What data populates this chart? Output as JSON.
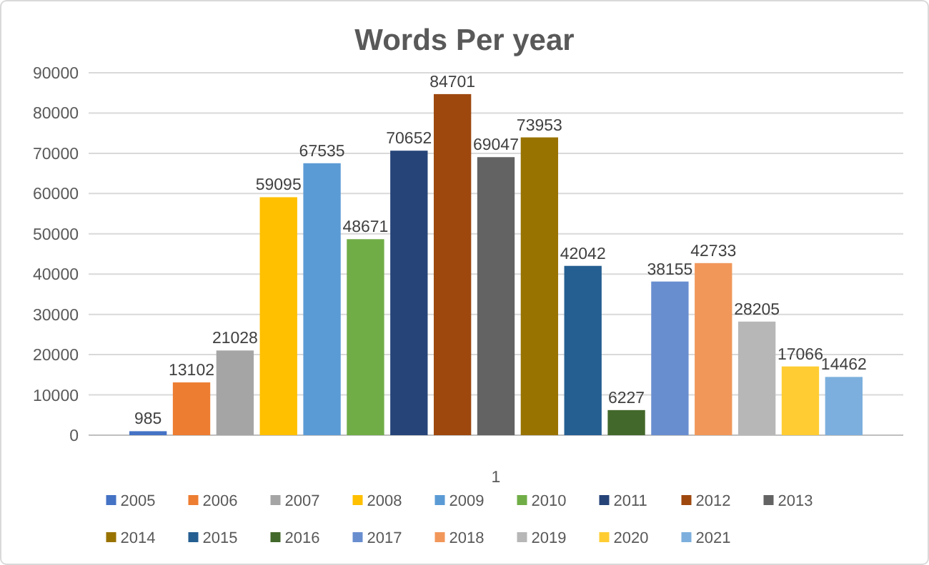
{
  "chart_data": {
    "type": "bar",
    "title": "Words Per year",
    "categories": [
      "1"
    ],
    "series": [
      {
        "name": "2005",
        "color": "#4472c4",
        "values": [
          985
        ]
      },
      {
        "name": "2006",
        "color": "#ed7d31",
        "values": [
          13102
        ]
      },
      {
        "name": "2007",
        "color": "#a5a5a5",
        "values": [
          21028
        ]
      },
      {
        "name": "2008",
        "color": "#ffc000",
        "values": [
          59095
        ]
      },
      {
        "name": "2009",
        "color": "#5b9bd5",
        "values": [
          67535
        ]
      },
      {
        "name": "2010",
        "color": "#70ad47",
        "values": [
          48671
        ]
      },
      {
        "name": "2011",
        "color": "#264478",
        "values": [
          70652
        ]
      },
      {
        "name": "2012",
        "color": "#9e480e",
        "values": [
          84701
        ]
      },
      {
        "name": "2013",
        "color": "#636363",
        "values": [
          69047
        ]
      },
      {
        "name": "2014",
        "color": "#997300",
        "values": [
          73953
        ]
      },
      {
        "name": "2015",
        "color": "#255e91",
        "values": [
          42042
        ]
      },
      {
        "name": "2016",
        "color": "#43682b",
        "values": [
          6227
        ]
      },
      {
        "name": "2017",
        "color": "#698ed0",
        "values": [
          38155
        ]
      },
      {
        "name": "2018",
        "color": "#f1975a",
        "values": [
          42733
        ]
      },
      {
        "name": "2019",
        "color": "#b7b7b7",
        "values": [
          28205
        ]
      },
      {
        "name": "2020",
        "color": "#ffcd33",
        "values": [
          17066
        ]
      },
      {
        "name": "2021",
        "color": "#7cafdd",
        "values": [
          14462
        ]
      }
    ],
    "ylim": [
      0,
      90000
    ],
    "yticks": [
      0,
      10000,
      20000,
      30000,
      40000,
      50000,
      60000,
      70000,
      80000,
      90000
    ],
    "grid": "y",
    "legend": "bottom",
    "data_labels": true
  }
}
